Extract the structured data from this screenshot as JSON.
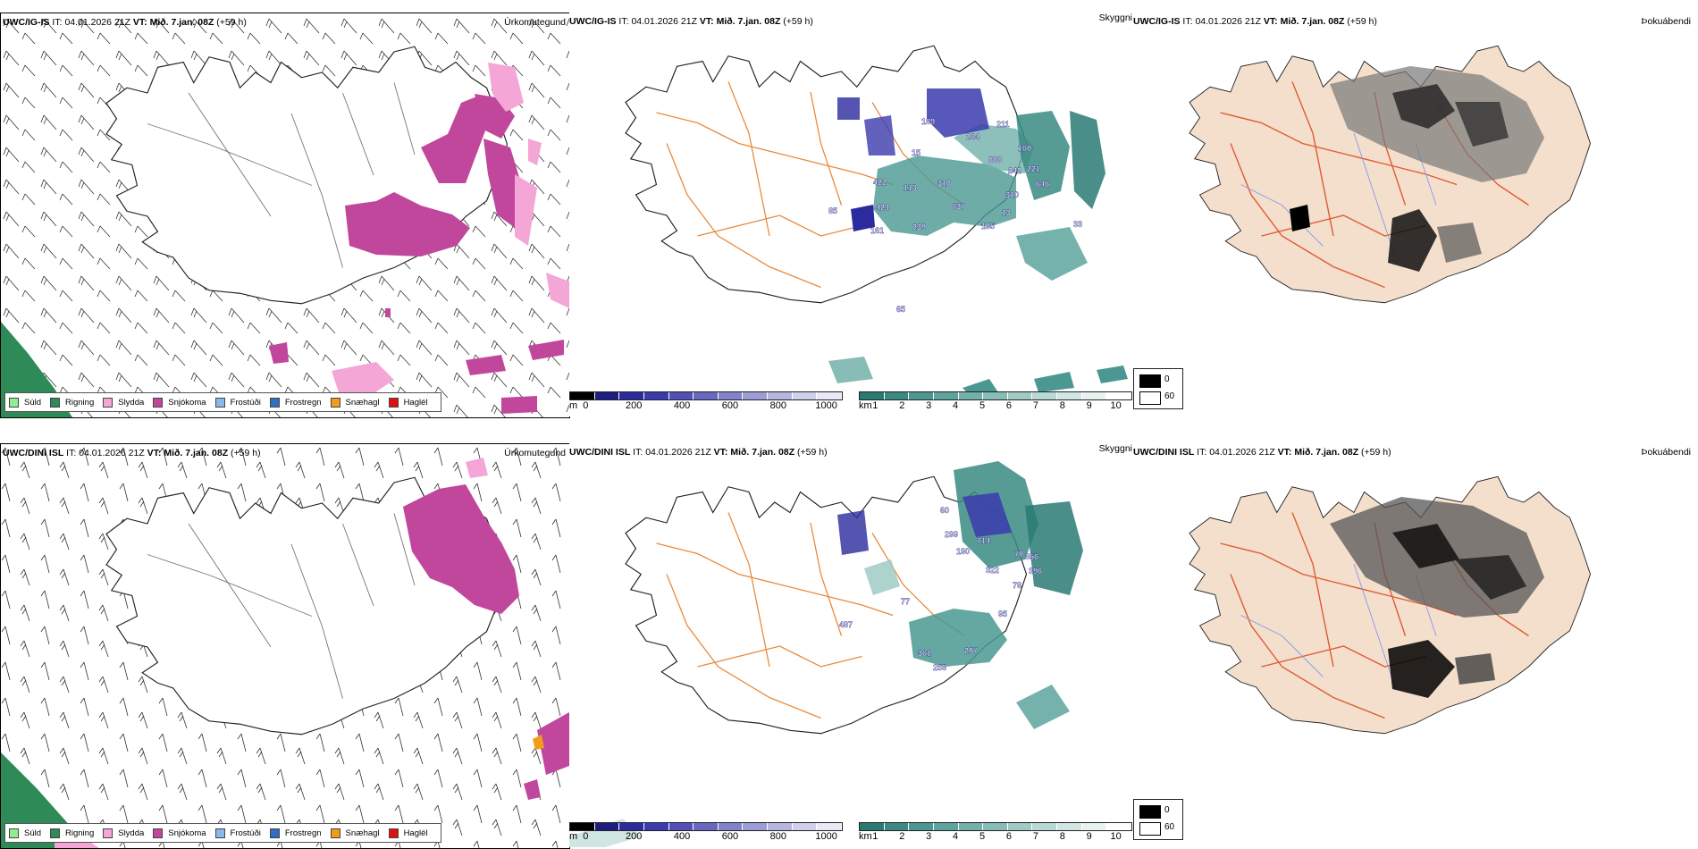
{
  "rows": [
    {
      "model": "UWC/IG-IS",
      "it_label": "IT:",
      "it_value": "04.01.2026 21Z",
      "vt_label": "VT:",
      "vt_value": "Mið. 7.jan. 08Z",
      "lead": "(+59 h)",
      "panels": {
        "precip_type": "Úrkomutegund",
        "cloud_base": "Skyggni",
        "fog": "Þokuábendi"
      },
      "height_labels": [
        "189",
        "264",
        "211",
        "160",
        "15",
        "888",
        "242",
        "221",
        "646",
        "422",
        "113",
        "318",
        "310",
        "424",
        "637",
        "85",
        "161",
        "239",
        "195",
        "13",
        "33",
        "65"
      ]
    },
    {
      "model": "UWC/DINI ISL",
      "it_label": "IT:",
      "it_value": "04.01.2026 21Z",
      "vt_label": "VT:",
      "vt_value": "Mið. 7.jan. 08Z",
      "lead": "(+59 h)",
      "panels": {
        "precip_type": "Úrkomutegund",
        "cloud_base": "Skyggni",
        "fog": "Þokuábendi"
      },
      "height_labels": [
        "60",
        "299",
        "190",
        "714",
        "70",
        "322",
        "396",
        "356",
        "78",
        "77",
        "487",
        "361",
        "207",
        "258",
        "95"
      ]
    }
  ],
  "precip_legend": [
    {
      "label": "Súld",
      "color": "#90ee90"
    },
    {
      "label": "Rigning",
      "color": "#2e8b57"
    },
    {
      "label": "Slydda",
      "color": "#f4a6d7"
    },
    {
      "label": "Snjókoma",
      "color": "#c0479b"
    },
    {
      "label": "Frostúði",
      "color": "#8ab8ec"
    },
    {
      "label": "Frostregn",
      "color": "#2f6fc1"
    },
    {
      "label": "Snæhagl",
      "color": "#f39c1c"
    },
    {
      "label": "Haglél",
      "color": "#e01010"
    }
  ],
  "height_bar": {
    "unit": "m",
    "ticks": [
      "0",
      "200",
      "400",
      "600",
      "800",
      "1000"
    ],
    "colors": [
      "#000000",
      "#1d1d80",
      "#2b2b9e",
      "#3b3bae",
      "#5050b8",
      "#6868c0",
      "#8282cc",
      "#9c9cd6",
      "#b6b6e0",
      "#d0d0ec",
      "#e8e8f6"
    ]
  },
  "vis_bar": {
    "unit": "km",
    "ticks": [
      "1",
      "2",
      "3",
      "4",
      "5",
      "6",
      "7",
      "8",
      "9",
      "10"
    ],
    "colors": [
      "#2a7a74",
      "#3a8a83",
      "#4a9891",
      "#5da49e",
      "#72b0aa",
      "#88bcb7",
      "#a0cac5",
      "#b8d8d4",
      "#d0e6e3",
      "#e8f3f1",
      "#ffffff"
    ]
  },
  "fog_legend": {
    "low": "0",
    "high": "60"
  },
  "colors": {
    "outline": "#222222",
    "roads": "#e8893c",
    "land_fog": "#f3dfcc",
    "fog_roads": "#e05a30",
    "rivers": "#8899ee"
  }
}
